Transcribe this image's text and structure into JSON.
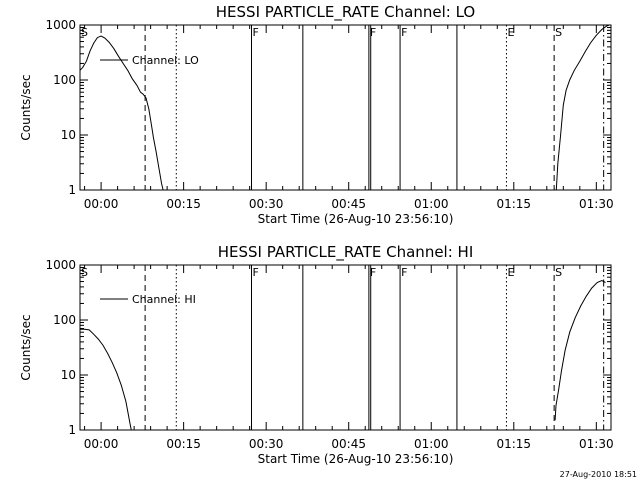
{
  "chart_data": [
    {
      "type": "line",
      "title": "HESSI PARTICLE_RATE Channel: LO",
      "xlabel": "Start Time (26-Aug-10 23:56:10)",
      "ylabel": "Counts/sec",
      "y_scale": "log",
      "ylim": [
        1,
        1000
      ],
      "xlim": [
        "23:56:10",
        "01:32:40"
      ],
      "x_tick_labels": [
        "00:00",
        "00:15",
        "00:30",
        "00:45",
        "01:00",
        "01:15",
        "01:30"
      ],
      "y_tick_labels": [
        "1",
        "10",
        "100",
        "1000"
      ],
      "legend_position": "top-left",
      "series": [
        {
          "name": "Channel: LO",
          "segments": [
            [
              [
                "23:56:10",
                150
              ],
              [
                "23:56:40",
                170
              ],
              [
                "23:57:20",
                220
              ],
              [
                "23:58:00",
                340
              ],
              [
                "23:58:40",
                470
              ],
              [
                "23:59:20",
                590
              ],
              [
                "00:00:00",
                630
              ],
              [
                "00:00:40",
                580
              ],
              [
                "00:01:30",
                480
              ],
              [
                "00:02:20",
                370
              ],
              [
                "00:03:10",
                270
              ],
              [
                "00:04:00",
                200
              ],
              [
                "00:04:50",
                150
              ],
              [
                "00:05:40",
                105
              ],
              [
                "00:06:30",
                80
              ],
              [
                "00:07:10",
                60
              ],
              [
                "00:07:40",
                55
              ],
              [
                "00:08:10",
                47
              ],
              [
                "00:08:40",
                30
              ],
              [
                "00:09:10",
                15
              ],
              [
                "00:09:30",
                9
              ],
              [
                "00:10:00",
                5
              ],
              [
                "00:10:30",
                2.5
              ],
              [
                "00:11:00",
                1.3
              ],
              [
                "00:11:30",
                0.8
              ]
            ],
            [
              [
                "01:22:40",
                0.8
              ],
              [
                "01:23:00",
                3
              ],
              [
                "01:23:30",
                10
              ],
              [
                "01:24:00",
                35
              ],
              [
                "01:24:30",
                65
              ],
              [
                "01:25:10",
                100
              ],
              [
                "01:26:00",
                150
              ],
              [
                "01:27:00",
                220
              ],
              [
                "01:28:00",
                330
              ],
              [
                "01:29:00",
                480
              ],
              [
                "01:30:00",
                650
              ],
              [
                "01:31:00",
                830
              ],
              [
                "01:31:50",
                950
              ],
              [
                "01:32:20",
                1000
              ]
            ]
          ]
        }
      ],
      "markers": [
        {
          "label": "S",
          "time": "23:56:10",
          "style": "none"
        },
        {
          "label": "",
          "time": "00:08:00",
          "style": "dashed"
        },
        {
          "label": "",
          "time": "00:13:40",
          "style": "dotted"
        },
        {
          "label": "F",
          "time": "00:27:20",
          "style": "solid"
        },
        {
          "label": "",
          "time": "00:36:40",
          "style": "solid"
        },
        {
          "label": "F",
          "time": "00:48:40",
          "style": "solid"
        },
        {
          "label": "",
          "time": "00:49:00",
          "style": "solid"
        },
        {
          "label": "F",
          "time": "00:54:20",
          "style": "solid"
        },
        {
          "label": "",
          "time": "01:04:40",
          "style": "solid"
        },
        {
          "label": "E",
          "time": "01:13:40",
          "style": "dotted"
        },
        {
          "label": "S",
          "time": "01:22:20",
          "style": "dashed"
        },
        {
          "label": "",
          "time": "01:31:20",
          "style": "dashdot"
        }
      ]
    },
    {
      "type": "line",
      "title": "HESSI PARTICLE_RATE Channel: HI",
      "xlabel": "Start Time (26-Aug-10 23:56:10)",
      "ylabel": "Counts/sec",
      "y_scale": "log",
      "ylim": [
        1,
        1000
      ],
      "xlim": [
        "23:56:10",
        "01:32:40"
      ],
      "x_tick_labels": [
        "00:00",
        "00:15",
        "00:30",
        "00:45",
        "01:00",
        "01:15",
        "01:30"
      ],
      "y_tick_labels": [
        "1",
        "10",
        "100",
        "1000"
      ],
      "legend_position": "top-left",
      "series": [
        {
          "name": "Channel: HI",
          "segments": [
            [
              [
                "23:56:10",
                68
              ],
              [
                "23:57:00",
                68
              ],
              [
                "23:57:50",
                66
              ],
              [
                "23:58:40",
                55
              ],
              [
                "23:59:30",
                45
              ],
              [
                "00:00:20",
                35
              ],
              [
                "00:01:10",
                25
              ],
              [
                "00:02:00",
                17
              ],
              [
                "00:02:50",
                11
              ],
              [
                "00:03:40",
                6.5
              ],
              [
                "00:04:30",
                3.3
              ],
              [
                "00:05:00",
                1.8
              ],
              [
                "00:05:20",
                1.2
              ],
              [
                "00:05:40",
                0.8
              ]
            ],
            [
              [
                "01:22:30",
                1.5
              ],
              [
                "01:22:40",
                2.8
              ],
              [
                "01:23:10",
                5.5
              ],
              [
                "01:23:40",
                12
              ],
              [
                "01:24:20",
                28
              ],
              [
                "01:25:10",
                60
              ],
              [
                "01:26:10",
                110
              ],
              [
                "01:27:10",
                180
              ],
              [
                "01:28:10",
                270
              ],
              [
                "01:29:10",
                380
              ],
              [
                "01:30:10",
                480
              ],
              [
                "01:31:00",
                520
              ],
              [
                "01:31:40",
                480
              ]
            ]
          ]
        }
      ],
      "markers": [
        {
          "label": "S",
          "time": "23:56:10",
          "style": "none"
        },
        {
          "label": "",
          "time": "00:08:00",
          "style": "dashed"
        },
        {
          "label": "",
          "time": "00:13:40",
          "style": "dotted"
        },
        {
          "label": "F",
          "time": "00:27:20",
          "style": "solid"
        },
        {
          "label": "",
          "time": "00:36:40",
          "style": "solid"
        },
        {
          "label": "F",
          "time": "00:48:40",
          "style": "solid"
        },
        {
          "label": "",
          "time": "00:49:00",
          "style": "solid"
        },
        {
          "label": "F",
          "time": "00:54:20",
          "style": "solid"
        },
        {
          "label": "",
          "time": "01:04:40",
          "style": "solid"
        },
        {
          "label": "E",
          "time": "01:13:40",
          "style": "dotted"
        },
        {
          "label": "S",
          "time": "01:22:20",
          "style": "dashed"
        },
        {
          "label": "",
          "time": "01:31:20",
          "style": "dashdot"
        }
      ]
    }
  ],
  "footer": {
    "timestamp": "27-Aug-2010 18:51"
  }
}
